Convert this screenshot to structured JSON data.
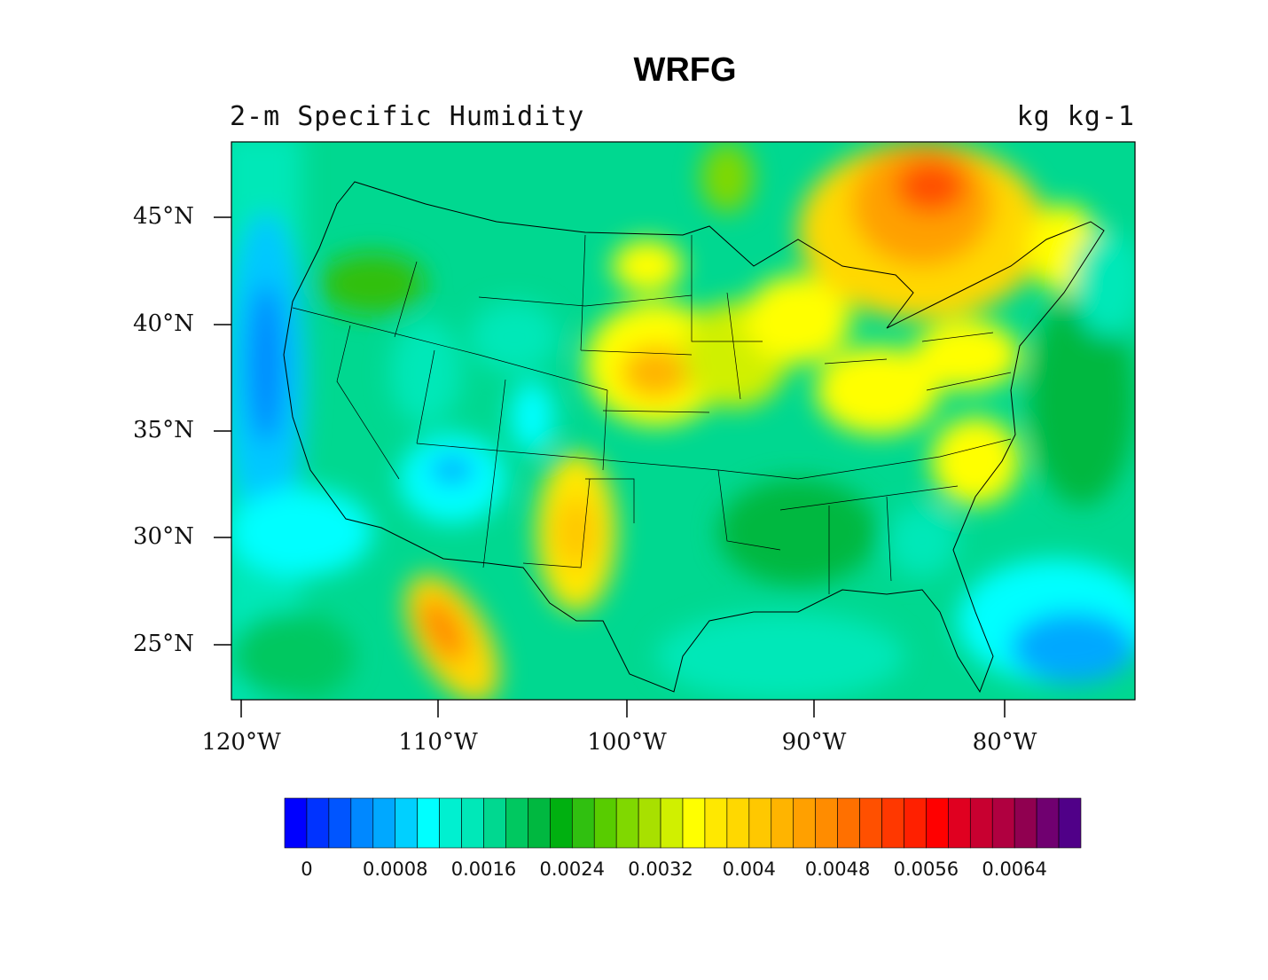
{
  "title": "WRFG",
  "subtitle_left": "2-m Specific Humidity",
  "subtitle_right": "kg kg-1",
  "map": {
    "projection": "lat-lon",
    "lat_ticks": [
      "45°N",
      "40°N",
      "35°N",
      "30°N",
      "25°N"
    ],
    "lon_ticks": [
      "120°W",
      "110°W",
      "100°W",
      "90°W",
      "80°W"
    ],
    "overlays": [
      "coastlines",
      "US state boundaries"
    ]
  },
  "colorbar": {
    "labels": [
      "0",
      "0.0008",
      "0.0016",
      "0.0024",
      "0.0032",
      "0.004",
      "0.0048",
      "0.0056",
      "0.0064"
    ],
    "interval": 0.0002,
    "colors": [
      "#0000ff",
      "#0033ff",
      "#0055ff",
      "#0088ff",
      "#00a8ff",
      "#00d0ff",
      "#00ffff",
      "#00f0d0",
      "#00e8b8",
      "#00d890",
      "#00c860",
      "#00b840",
      "#00b010",
      "#30c010",
      "#58cc00",
      "#80d800",
      "#a8e000",
      "#d0f000",
      "#ffff00",
      "#ffe800",
      "#ffd800",
      "#ffc800",
      "#ffb400",
      "#ffa000",
      "#ff8c00",
      "#ff7000",
      "#ff5000",
      "#ff3800",
      "#ff2000",
      "#ff0000",
      "#e00020",
      "#c80030",
      "#b00040",
      "#900050",
      "#700070",
      "#500088"
    ]
  }
}
